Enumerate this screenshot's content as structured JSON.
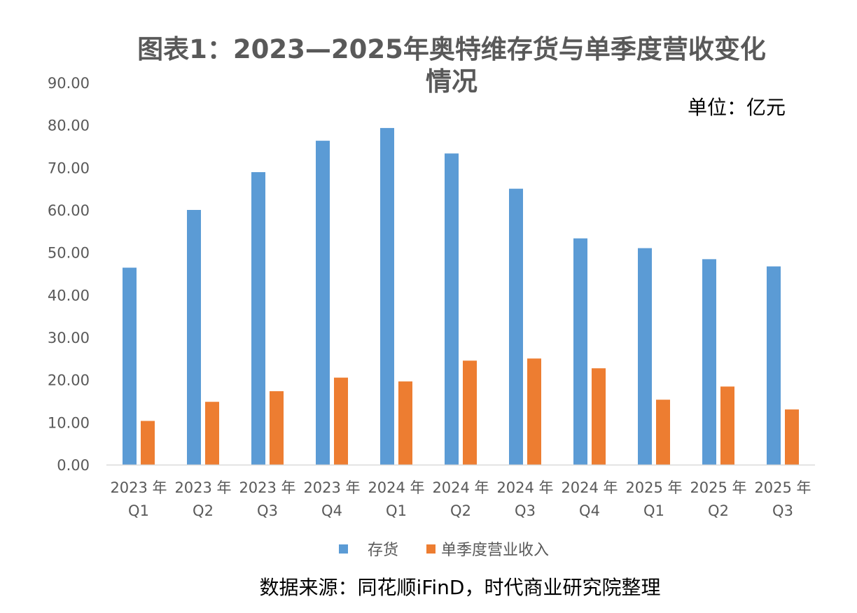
{
  "title": "图表1：2023—2025年奥特维存货与单季度营收变化情况",
  "unit": "单位：亿元",
  "source": "数据来源：同花顺iFinD，时代商业研究院整理",
  "colors": {
    "inventory": "#5B9BD5",
    "revenue": "#ED7D31",
    "axis": "#D9D9D9",
    "text": "#595959"
  },
  "chart_data": {
    "type": "bar",
    "categories": [
      [
        "2023 年",
        "Q1"
      ],
      [
        "2023 年",
        "Q2"
      ],
      [
        "2023 年",
        "Q3"
      ],
      [
        "2023 年",
        "Q4"
      ],
      [
        "2024 年",
        "Q1"
      ],
      [
        "2024 年",
        "Q2"
      ],
      [
        "2024 年",
        "Q3"
      ],
      [
        "2024 年",
        "Q4"
      ],
      [
        "2025 年",
        "Q1"
      ],
      [
        "2025 年",
        "Q2"
      ],
      [
        "2025 年",
        "Q3"
      ]
    ],
    "series": [
      {
        "name": "存货",
        "values": [
          46.4,
          60.0,
          68.9,
          76.3,
          79.3,
          73.3,
          65.0,
          53.3,
          51.0,
          48.4,
          46.7
        ]
      },
      {
        "name": "单季度营业收入",
        "values": [
          10.3,
          14.8,
          17.3,
          20.5,
          19.6,
          24.5,
          25.0,
          22.7,
          15.3,
          18.4,
          13.0
        ]
      }
    ],
    "yticks": [
      "0.00",
      "10.00",
      "20.00",
      "30.00",
      "40.00",
      "50.00",
      "60.00",
      "70.00",
      "80.00",
      "90.00"
    ],
    "ylim": [
      0,
      90
    ],
    "grid": false,
    "legend": "bottom"
  }
}
